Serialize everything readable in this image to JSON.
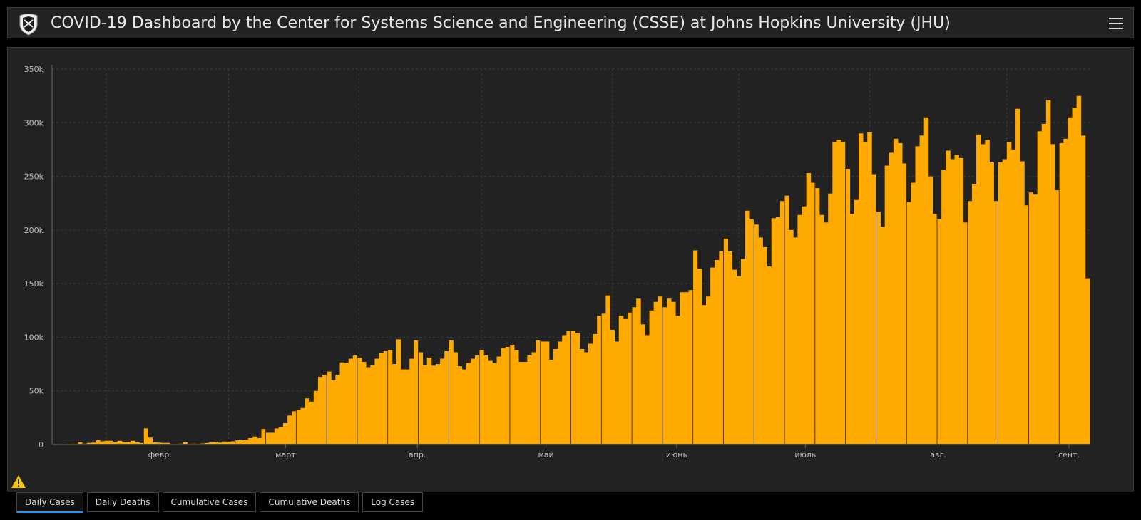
{
  "header": {
    "title": "COVID-19 Dashboard by the Center for Systems Science and Engineering (CSSE) at Johns Hopkins University (JHU)",
    "logo_icon": "jhu-shield-logo",
    "menu_icon": "hamburger-menu-icon"
  },
  "colors": {
    "bar": "#ffaa00",
    "background": "#232323",
    "grid": "#3a3a3a",
    "text": "#bfbfbf",
    "tab_active": "#1e90ff"
  },
  "warning_icon": "warning-icon",
  "tabs": [
    {
      "label": "Daily Cases",
      "active": true
    },
    {
      "label": "Daily Deaths",
      "active": false
    },
    {
      "label": "Cumulative Cases",
      "active": false
    },
    {
      "label": "Cumulative Deaths",
      "active": false
    },
    {
      "label": "Log Cases",
      "active": false
    }
  ],
  "chart_data": {
    "type": "bar",
    "title": "",
    "xlabel": "",
    "ylabel": "",
    "ylim": [
      0,
      350000
    ],
    "y_ticks": [
      0,
      50000,
      100000,
      150000,
      200000,
      250000,
      300000,
      350000
    ],
    "y_tick_labels": [
      "0",
      "50k",
      "100k",
      "150k",
      "200k",
      "250k",
      "300k",
      "350k"
    ],
    "x_tick_labels": [
      "февр.",
      "март",
      "апр.",
      "май",
      "июнь",
      "июль",
      "авг.",
      "сент."
    ],
    "grid": true,
    "series": [
      {
        "values": [
          0,
          0,
          200,
          500,
          600,
          600,
          2100,
          800,
          1500,
          1800,
          4000,
          3000,
          3500,
          3500,
          2500,
          3500,
          2500,
          2500,
          3500,
          2000,
          1500,
          15000,
          6500,
          2000,
          1800,
          1500,
          1500,
          500,
          500,
          800,
          2000,
          600,
          800,
          600,
          1000,
          1500,
          2000,
          2500,
          1800,
          2800,
          2500,
          3000,
          4000,
          4000,
          4500,
          6000,
          7500,
          6000,
          14500,
          11000,
          11000,
          15000,
          16000,
          20000,
          27000,
          31000,
          32000,
          34000,
          43000,
          40000,
          50000,
          63000,
          65000,
          68000,
          60000,
          65000,
          76500,
          76000,
          80000,
          83000,
          81000,
          77000,
          72000,
          74000,
          80000,
          85000,
          87000,
          88000,
          75000,
          98000,
          70000,
          70000,
          80000,
          97000,
          86000,
          74000,
          81000,
          73500,
          75000,
          80000,
          87000,
          97000,
          86000,
          73000,
          70000,
          76000,
          80000,
          83000,
          88000,
          83000,
          78000,
          76000,
          82000,
          90000,
          91000,
          93000,
          88000,
          77000,
          77000,
          83000,
          86000,
          97000,
          96000,
          96000,
          79000,
          89000,
          96000,
          102000,
          106000,
          106000,
          104000,
          89000,
          86000,
          94000,
          103000,
          120000,
          122000,
          139000,
          107000,
          96000,
          120000,
          117000,
          123000,
          128000,
          136000,
          112000,
          102000,
          125000,
          133000,
          138000,
          128000,
          136000,
          133000,
          120000,
          142000,
          142000,
          144000,
          181000,
          164000,
          130000,
          138000,
          165000,
          172000,
          180000,
          192000,
          180000,
          163000,
          157000,
          173000,
          218000,
          210000,
          205000,
          193000,
          184000,
          166000,
          211000,
          212000,
          227000,
          232000,
          200000,
          193000,
          214000,
          222000,
          253000,
          244000,
          239000,
          214000,
          207000,
          234000,
          282000,
          284000,
          282000,
          257000,
          215000,
          228000,
          290000,
          282000,
          291000,
          252000,
          217000,
          203000,
          260000,
          272000,
          285000,
          281000,
          262000,
          226000,
          244000,
          278000,
          288000,
          305000,
          250000,
          215000,
          210000,
          256000,
          274000,
          266000,
          270000,
          267000,
          207000,
          227000,
          243000,
          289000,
          280000,
          284000,
          263000,
          227000,
          263000,
          266000,
          282000,
          275000,
          313000,
          264000,
          223000,
          235000,
          233000,
          292000,
          299000,
          321000,
          280000,
          237000,
          281000,
          285000,
          305000,
          314000,
          325000,
          288000,
          155000
        ]
      }
    ]
  }
}
